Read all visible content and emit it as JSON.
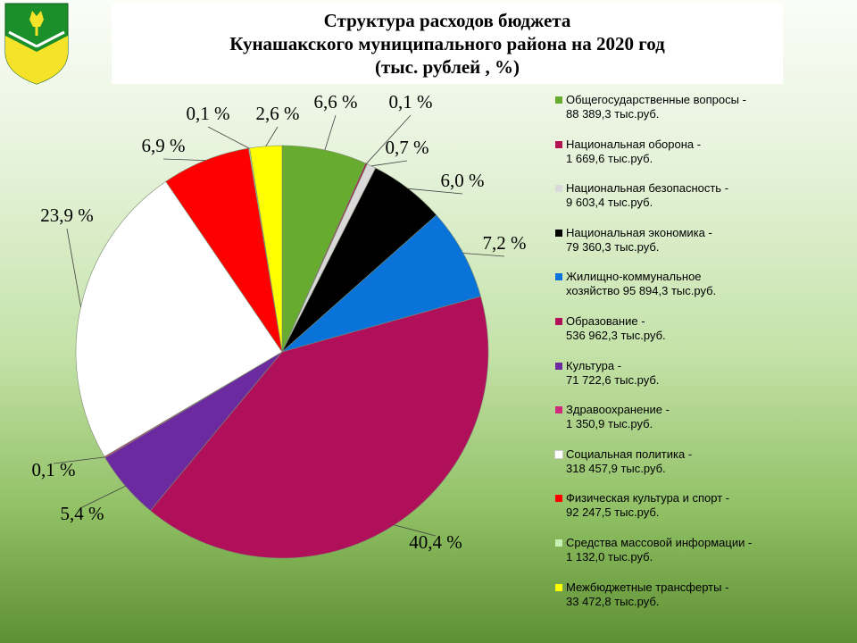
{
  "title": {
    "line1": "Структура расходов бюджета",
    "line2": "Кунашакского муниципального района на 2020 год",
    "line3": "(тыс. рублей , %)"
  },
  "chart_data": {
    "type": "pie",
    "title": "Структура расходов бюджета Кунашакского муниципального района на 2020 год (тыс. рублей , %)",
    "slices": [
      {
        "legend_line1": "Общегосударственные вопросы -",
        "legend_line2": "88 389,3  тыс.руб.",
        "value": 88389.3,
        "percent_label": "6,6 %",
        "color": "#67ab2f"
      },
      {
        "legend_line1": "Национальная оборона -",
        "legend_line2": "1 669,6 тыс.руб.",
        "value": 1669.6,
        "percent_label": "0,1 %",
        "color": "#b3144f"
      },
      {
        "legend_line1": "Национальная безопасность -",
        "legend_line2": "9 603,4 тыс.руб.",
        "value": 9603.4,
        "percent_label": "0,7 %",
        "color": "#d9d9d9"
      },
      {
        "legend_line1": "Национальная экономика -",
        "legend_line2": "79 360,3  тыс.руб.",
        "value": 79360.3,
        "percent_label": "6,0 %",
        "color": "#000000"
      },
      {
        "legend_line1": "Жилищно-коммунальное",
        "legend_line2": "хозяйство  95 894,3 тыс.руб.",
        "value": 95894.3,
        "percent_label": "7,2 %",
        "color": "#0a73d9"
      },
      {
        "legend_line1": "Образование -",
        "legend_line2": "536 962,3 тыс.руб.",
        "value": 536962.3,
        "percent_label": "40,4 %",
        "color": "#b0105a"
      },
      {
        "legend_line1": "Культура -",
        "legend_line2": "71 722,6  тыс.руб.",
        "value": 71722.6,
        "percent_label": "5,4 %",
        "color": "#6c2aa0"
      },
      {
        "legend_line1": "Здравоохранение -",
        "legend_line2": "1 350,9 тыс.руб.",
        "value": 1350.9,
        "percent_label": "0,1 %",
        "color": "#d12a7d"
      },
      {
        "legend_line1": "Социальная политика -",
        "legend_line2": "318 457,9 тыс.руб.",
        "value": 318457.9,
        "percent_label": "23,9 %",
        "color": "#ffffff"
      },
      {
        "legend_line1": "Физическая культура и спорт -",
        "legend_line2": "92 247,5  тыс.руб.",
        "value": 92247.5,
        "percent_label": "6,9 %",
        "color": "#ff0000"
      },
      {
        "legend_line1": "Средства массовой информации -",
        "legend_line2": "1 132,0 тыс.руб.",
        "value": 1132.0,
        "percent_label": "0,1 %",
        "color": "#c8f0b4"
      },
      {
        "legend_line1": "Межбюджетные трансферты -",
        "legend_line2": "33 472,8  тыс.руб.",
        "value": 33472.8,
        "percent_label": "2,6 %",
        "color": "#ffff00"
      }
    ],
    "start": "12 o'clock",
    "direction": "clockwise",
    "legend_position": "right"
  },
  "colors": {
    "background_top": "#fbfdf8",
    "background_bottom": "#5e8f33",
    "title_box": "#ffffff"
  },
  "logo_icon": "coat-of-arms-icon"
}
